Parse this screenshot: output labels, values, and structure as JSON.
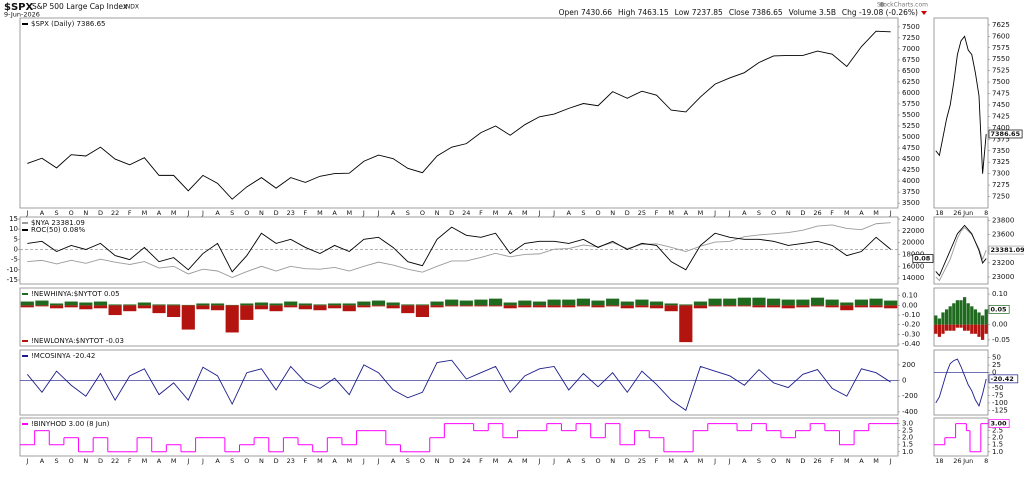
{
  "header": {
    "symbol": "$SPX",
    "name": "S&P 500 Large Cap Index",
    "exchange": "INDX",
    "date": "9-Jun-2026",
    "brand": "StockCharts.com",
    "quote": [
      "Open 7430.66",
      "High 7463.15",
      "Low 7237.85",
      "Close 7386.65",
      "Volume 3.5B",
      "Chg -19.08 (-0.26%)"
    ]
  },
  "chart_data": [
    {
      "type": "line",
      "categories": [
        "J",
        "A",
        "S",
        "O",
        "N",
        "D",
        "22",
        "F",
        "M",
        "A",
        "M",
        "J",
        "J",
        "A",
        "S",
        "O",
        "N",
        "D",
        "23",
        "F",
        "M",
        "A",
        "M",
        "J",
        "J",
        "A",
        "S",
        "O",
        "N",
        "D",
        "24",
        "F",
        "M",
        "A",
        "M",
        "J",
        "J",
        "A",
        "S",
        "O",
        "N",
        "D",
        "25",
        "F",
        "M",
        "A",
        "M",
        "J",
        "J",
        "A",
        "S",
        "O",
        "N",
        "D",
        "26",
        "F",
        "M",
        "A",
        "M",
        "J"
      ],
      "series": [
        {
          "name": "$SPX (Daily) 7386.65",
          "color": "#000000",
          "values": [
            4400,
            4520,
            4300,
            4600,
            4570,
            4770,
            4500,
            4370,
            4530,
            4130,
            4130,
            3780,
            4130,
            3950,
            3590,
            3870,
            4080,
            3840,
            4080,
            3970,
            4110,
            4170,
            4180,
            4450,
            4590,
            4510,
            4290,
            4190,
            4570,
            4770,
            4850,
            5100,
            5250,
            5040,
            5280,
            5460,
            5520,
            5650,
            5760,
            5710,
            6030,
            5880,
            6040,
            5950,
            5610,
            5570,
            5910,
            6200,
            6340,
            6460,
            6690,
            6840,
            6850,
            6850,
            6950,
            6880,
            6600,
            7050,
            7400,
            7386.65
          ]
        }
      ],
      "ylim": [
        3390,
        7700
      ],
      "yticks": [
        7500,
        7250,
        7000,
        6750,
        6500,
        6250,
        6000,
        5750,
        5500,
        5250,
        5000,
        4750,
        4500,
        4250,
        4000,
        3750,
        3500
      ]
    },
    {
      "type": "line",
      "series": [
        {
          "name": "$NYA 23381.09",
          "color": "#9a9a9a",
          "axis": "y2",
          "values": [
            16800,
            17000,
            16400,
            17000,
            16500,
            17200,
            16700,
            16300,
            16800,
            15700,
            16000,
            14700,
            15500,
            15200,
            14100,
            15100,
            16000,
            15200,
            16000,
            15600,
            15500,
            15800,
            15200,
            16000,
            16700,
            16200,
            15500,
            15000,
            16000,
            16900,
            16900,
            17500,
            18200,
            17600,
            18000,
            18100,
            18900,
            19000,
            19600,
            19300,
            20000,
            19000,
            19700,
            19800,
            19200,
            18500,
            19400,
            20100,
            20200,
            21000,
            21300,
            21500,
            21700,
            22100,
            22800,
            23000,
            22400,
            22200,
            23200,
            23381.09
          ]
        },
        {
          "name": "ROC(50) 0.08%",
          "color": "#000000",
          "values": [
            3,
            4,
            -1,
            2,
            0,
            3,
            -3,
            -5,
            1,
            -6,
            -4,
            -10,
            -2,
            3,
            -11,
            -3,
            8,
            3,
            5,
            1,
            -2,
            2,
            -1,
            5,
            6,
            1,
            -6,
            -8,
            5,
            11,
            7,
            6,
            8,
            -2,
            3,
            4,
            4,
            3,
            5,
            1,
            4,
            0,
            3,
            2,
            -6,
            -10,
            2,
            8,
            6,
            5,
            5,
            4,
            2,
            3,
            4,
            2,
            -3,
            -1,
            6,
            0.08
          ]
        }
      ],
      "ylim": [
        -17,
        16
      ],
      "yticks": [
        15,
        10,
        5,
        0,
        -5,
        -10,
        -15
      ],
      "y2lim": [
        13000,
        24340
      ],
      "y2ticks": [
        24000,
        22000,
        20000,
        18000,
        16000,
        14000
      ],
      "zero_line": true
    },
    {
      "type": "bar",
      "series": [
        {
          "name": "!NEWHINYA:$NYTOT 0.05",
          "color": "#1f6a1f",
          "values": [
            0.04,
            0.05,
            0.02,
            0.04,
            0.03,
            0.04,
            0.01,
            0.01,
            0.03,
            0.01,
            0.01,
            0.005,
            0.02,
            0.02,
            0.005,
            0.02,
            0.03,
            0.02,
            0.04,
            0.02,
            0.01,
            0.02,
            0.02,
            0.04,
            0.05,
            0.03,
            0.01,
            0.01,
            0.04,
            0.06,
            0.05,
            0.06,
            0.07,
            0.03,
            0.05,
            0.04,
            0.06,
            0.06,
            0.07,
            0.05,
            0.07,
            0.04,
            0.06,
            0.04,
            0.02,
            0.01,
            0.04,
            0.07,
            0.07,
            0.08,
            0.08,
            0.07,
            0.06,
            0.06,
            0.08,
            0.06,
            0.03,
            0.06,
            0.07,
            0.05
          ]
        },
        {
          "name": "!NEWLONYA:$NYTOT -0.03",
          "color": "#b3140f",
          "values": [
            -0.02,
            -0.01,
            -0.03,
            -0.02,
            -0.04,
            -0.03,
            -0.1,
            -0.06,
            -0.03,
            -0.08,
            -0.12,
            -0.25,
            -0.04,
            -0.05,
            -0.28,
            -0.15,
            -0.04,
            -0.06,
            -0.02,
            -0.04,
            -0.05,
            -0.03,
            -0.06,
            -0.02,
            -0.01,
            -0.03,
            -0.08,
            -0.12,
            -0.02,
            -0.01,
            -0.01,
            -0.01,
            -0.01,
            -0.03,
            -0.02,
            -0.02,
            -0.02,
            -0.02,
            -0.01,
            -0.02,
            -0.01,
            -0.03,
            -0.02,
            -0.03,
            -0.06,
            -0.38,
            -0.03,
            -0.01,
            -0.01,
            -0.01,
            -0.02,
            -0.02,
            -0.03,
            -0.02,
            -0.01,
            -0.02,
            -0.05,
            -0.02,
            -0.02,
            -0.03
          ]
        }
      ],
      "ylim": [
        -0.42,
        0.18
      ],
      "yticks": [
        {
          "value": 0.1,
          "label": "0.10"
        },
        {
          "value": 0,
          "label": "0.00"
        },
        {
          "value": -0.1,
          "label": "-0.10"
        },
        {
          "value": -0.2,
          "label": "-0.20"
        },
        {
          "value": -0.3,
          "label": "-0.30"
        },
        {
          "value": -0.4,
          "label": "-0.40"
        }
      ]
    },
    {
      "type": "line",
      "series": [
        {
          "name": "!MCOSINYA -20.42",
          "color": "#1c1c8c",
          "values": [
            80,
            -150,
            120,
            -60,
            -200,
            90,
            -250,
            60,
            150,
            -180,
            -30,
            -250,
            170,
            60,
            -300,
            100,
            150,
            -120,
            180,
            -20,
            -100,
            30,
            -180,
            200,
            100,
            -120,
            -220,
            -150,
            230,
            260,
            20,
            100,
            180,
            -150,
            60,
            150,
            180,
            -120,
            90,
            -80,
            100,
            -150,
            120,
            -50,
            -250,
            -380,
            180,
            120,
            60,
            -60,
            140,
            -30,
            -90,
            80,
            140,
            -100,
            -200,
            150,
            100,
            -20.42
          ]
        }
      ],
      "ylim": [
        -440,
        390
      ],
      "yticks": [
        200,
        0,
        -200,
        -400
      ],
      "zero_line": true
    },
    {
      "type": "step",
      "series": [
        {
          "name": "!BINYHOD 3.00 (8 Jun)",
          "color": "#ff00ff",
          "values": [
            1.5,
            2.5,
            1.5,
            2,
            1,
            2,
            1,
            1,
            2,
            1,
            1.5,
            1,
            2,
            2,
            1,
            1.5,
            2,
            1,
            2,
            1.5,
            1,
            2,
            1.5,
            2.5,
            2.5,
            1.5,
            1,
            1,
            2,
            3,
            3,
            2.5,
            3,
            2,
            2.5,
            2.5,
            3,
            2.5,
            3,
            2,
            3,
            1.5,
            2.5,
            2,
            1,
            1,
            2.5,
            3,
            3,
            2.5,
            3,
            2.5,
            2,
            2.5,
            3,
            2.5,
            1.5,
            2.5,
            3,
            3
          ]
        }
      ],
      "ylim": [
        0.7,
        3.4
      ],
      "yticks": [
        {
          "value": 3,
          "label": "3.0"
        },
        2.5,
        {
          "value": 2,
          "label": "2.0"
        },
        1.5,
        {
          "value": 1,
          "label": "1.0"
        }
      ]
    },
    {
      "type": "line",
      "categories": [
        null,
        "18",
        null,
        null,
        null,
        null,
        "26",
        null,
        null,
        "Jun",
        null,
        null,
        null,
        null,
        "8"
      ],
      "series": [
        {
          "color": "#000000",
          "badge": "7386.65",
          "values": [
            7350,
            7340,
            7380,
            7420,
            7450,
            7500,
            7560,
            7590,
            7600,
            7570,
            7560,
            7520,
            7470,
            7300,
            7386.65
          ]
        }
      ],
      "ylim": [
        7225,
        7640
      ],
      "yticks": [
        7625,
        7600,
        7575,
        7550,
        7525,
        7500,
        7475,
        7450,
        7425,
        7400,
        7375,
        7350,
        7325,
        7300,
        7275,
        7250
      ]
    },
    {
      "type": "line",
      "series": [
        {
          "color": "#9a9a9a",
          "badge": "23381.09",
          "values": [
            23000,
            22950,
            23050,
            23150,
            23250,
            23400,
            23550,
            23650,
            23700,
            23650,
            23600,
            23500,
            23400,
            23250,
            23381.09
          ]
        },
        {
          "color": "#000000",
          "axis": "y2",
          "badge": "0.08",
          "values": [
            -3,
            -4,
            -2,
            0,
            2,
            4,
            6,
            7,
            8,
            7,
            6,
            4,
            2,
            -1,
            0.08
          ]
        }
      ],
      "ylim": [
        22900,
        23850
      ],
      "yticks": [
        23800,
        23600,
        23200,
        23000
      ],
      "y2lim": [
        -6,
        10
      ]
    },
    {
      "type": "bar",
      "series": [
        {
          "color": "#1f6a1f",
          "badge": "0.05",
          "values": [
            0.03,
            0.02,
            0.04,
            0.05,
            0.06,
            0.07,
            0.08,
            0.08,
            0.09,
            0.07,
            0.06,
            0.05,
            0.04,
            0.03,
            0.05
          ]
        },
        {
          "color": "#b3140f",
          "values": [
            -0.03,
            -0.04,
            -0.03,
            -0.02,
            -0.02,
            -0.02,
            -0.01,
            -0.01,
            -0.02,
            -0.02,
            -0.03,
            -0.03,
            -0.04,
            -0.05,
            -0.03
          ]
        }
      ],
      "ylim": [
        -0.07,
        0.12
      ],
      "yticks": [
        {
          "value": 0.1,
          "label": "0.10"
        },
        0.05,
        {
          "value": 0,
          "label": "0.00"
        },
        -0.05
      ]
    },
    {
      "type": "line",
      "series": [
        {
          "color": "#1c1c8c",
          "badge": "-20.42",
          "values": [
            -100,
            -80,
            -40,
            0,
            30,
            40,
            45,
            20,
            -10,
            -40,
            -60,
            -90,
            -110,
            -70,
            -20.42
          ]
        }
      ],
      "ylim": [
        -140,
        75
      ],
      "yticks": [
        50,
        25,
        0,
        -25,
        -50,
        -75,
        -100,
        -125
      ],
      "zero_line": true
    },
    {
      "type": "step",
      "series": [
        {
          "color": "#ff00ff",
          "badge": "3.00",
          "values": [
            1.5,
            1.5,
            1.5,
            2,
            2,
            2,
            3,
            3,
            3,
            2.5,
            1,
            1,
            1,
            3,
            3
          ]
        }
      ],
      "ylim": [
        0.7,
        3.4
      ],
      "yticks": [
        {
          "value": 3,
          "label": "3.0"
        },
        2.5,
        {
          "value": 2,
          "label": "2.0"
        },
        1.5,
        {
          "value": 1,
          "label": "1.0"
        }
      ]
    }
  ]
}
